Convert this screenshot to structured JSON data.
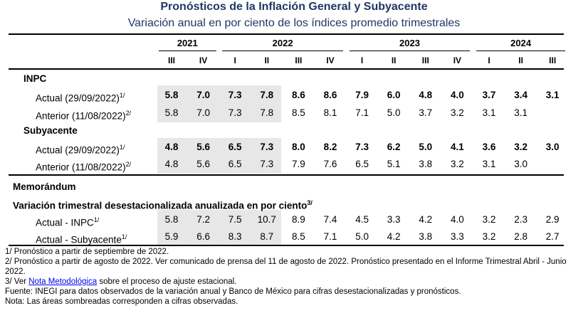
{
  "title": "Pronósticos de la Inflación General y Subyacente",
  "subtitle": "Variación anual en por ciento de los índices promedio trimestrales",
  "years": [
    {
      "label": "2021",
      "span": [
        0,
        1
      ]
    },
    {
      "label": "2022",
      "span": [
        2,
        5
      ]
    },
    {
      "label": "2023",
      "span": [
        6,
        9
      ]
    },
    {
      "label": "2024",
      "span": [
        10,
        12
      ]
    }
  ],
  "quarters": [
    "III",
    "IV",
    "I",
    "II",
    "III",
    "IV",
    "I",
    "II",
    "III",
    "IV",
    "I",
    "II",
    "III"
  ],
  "observed_quarters": 4,
  "sections": [
    {
      "heading": "INPC",
      "rows": [
        {
          "label": "Actual (29/09/2022)",
          "sup": "1/",
          "bold": true,
          "values": [
            "5.8",
            "7.0",
            "7.3",
            "7.8",
            "8.6",
            "8.6",
            "7.9",
            "6.0",
            "4.8",
            "4.0",
            "3.7",
            "3.4",
            "3.1"
          ]
        },
        {
          "label": "Anterior (11/08/2022)",
          "sup": "2/",
          "bold": false,
          "values": [
            "5.8",
            "7.0",
            "7.3",
            "7.8",
            "8.5",
            "8.1",
            "7.1",
            "5.0",
            "3.7",
            "3.2",
            "3.1",
            "3.1",
            ""
          ]
        }
      ]
    },
    {
      "heading": "Subyacente",
      "rows": [
        {
          "label": "Actual (29/09/2022)",
          "sup": "1/",
          "bold": true,
          "values": [
            "4.8",
            "5.6",
            "6.5",
            "7.3",
            "8.0",
            "8.2",
            "7.3",
            "6.2",
            "5.0",
            "4.1",
            "3.6",
            "3.2",
            "3.0"
          ]
        },
        {
          "label": "Anterior (11/08/2022)",
          "sup": "2/",
          "bold": false,
          "values": [
            "4.8",
            "5.6",
            "6.5",
            "7.3",
            "7.9",
            "7.6",
            "6.5",
            "5.1",
            "3.8",
            "3.2",
            "3.1",
            "3.0",
            ""
          ]
        }
      ]
    }
  ],
  "memo": {
    "heading": "Memorándum",
    "subheading": "Variación trimestral desestacionalizada anualizada en por ciento",
    "subheading_sup": "3/",
    "rows": [
      {
        "label": "Actual - INPC",
        "sup": "1/",
        "values": [
          "5.8",
          "7.2",
          "7.5",
          "10.7",
          "8.9",
          "7.4",
          "4.5",
          "3.3",
          "4.2",
          "4.0",
          "3.2",
          "2.3",
          "2.9"
        ]
      },
      {
        "label": "Actual - Subyacente",
        "sup": "1/",
        "values": [
          "5.9",
          "6.6",
          "8.3",
          "8.7",
          "8.5",
          "7.1",
          "5.0",
          "4.2",
          "3.8",
          "3.3",
          "3.2",
          "2.8",
          "2.7"
        ]
      }
    ]
  },
  "notes": {
    "n1": "1/ Pronóstico a partir de septiembre de 2022.",
    "n2": "2/ Pronóstico a partir de agosto de 2022. Ver comunicado de prensa del 11 de agosto de 2022. Pronóstico presentado en el Informe Trimestral Abril - Junio 2022.",
    "n3_prefix": "3/ Ver ",
    "n3_link": "Nota Metodológica",
    "n3_suffix": " sobre el proceso de ajuste estacional.",
    "n4": "Fuente: INEGI para datos observados de la variación anual y Banco de México para cifras desestacionalizadas y pronósticos.",
    "n5": "Nota: Las áreas sombreadas corresponden a cifras observadas."
  }
}
